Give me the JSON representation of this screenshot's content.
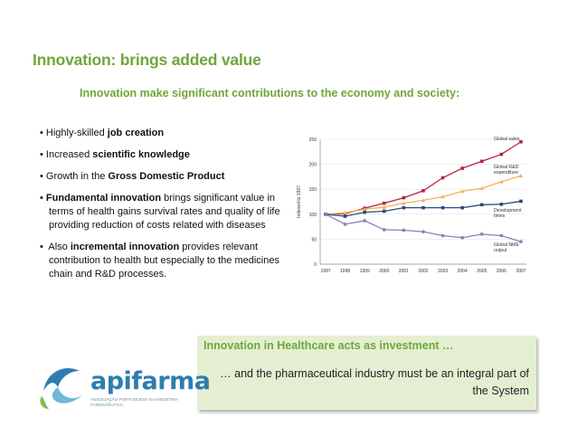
{
  "slide": {
    "title": "Innovation: brings added value",
    "subtitle": "Innovation make significant contributions to the economy and society:"
  },
  "bullets": [
    {
      "pre": "Highly-skilled ",
      "bold": "job creation",
      "post": ""
    },
    {
      "pre": "Increased ",
      "bold": "scientific knowledge",
      "post": ""
    },
    {
      "pre": "Growth in the ",
      "bold": "Gross Domestic Product",
      "post": ""
    },
    {
      "pre": "",
      "bold": "Fundamental innovation",
      "post": " brings significant value in terms of health gains survival rates and quality of life providing reduction of costs related with diseases"
    },
    {
      "pre": " Also ",
      "bold": "incremental innovation",
      "post": " provides relevant contribution to health but especially to the medicines chain and R&D processes."
    }
  ],
  "callout": {
    "heading": "Innovation in Healthcare acts as investment …",
    "body": "… and the pharmaceutical industry must be an integral part of the System"
  },
  "logo": {
    "name": "apifarma",
    "subtext": "ASSOCIAÇÃO PORTUGUESA DA INDÚSTRIA FARMACÊUTICA"
  },
  "chart_data": {
    "type": "line",
    "ylabel": "Indexed to 1997",
    "ylim": [
      0,
      250
    ],
    "yticks": [
      0,
      50,
      100,
      150,
      200,
      250
    ],
    "categories": [
      "1997",
      "1998",
      "1999",
      "2000",
      "2001",
      "2002",
      "2003",
      "2004",
      "2005",
      "2006",
      "2007"
    ],
    "series": [
      {
        "name": "Global sales",
        "label_lines": [
          "Global sales"
        ],
        "color": "#b5253a",
        "marker": "square",
        "values": [
          100,
          101,
          112,
          122,
          133,
          147,
          173,
          192,
          206,
          220,
          245
        ]
      },
      {
        "name": "Global R&D expenditure",
        "label_lines": [
          "Global R&D",
          "expenditure"
        ],
        "color": "#f2b35a",
        "marker": "triangle",
        "values": [
          100,
          103,
          110,
          114,
          122,
          128,
          135,
          146,
          152,
          165,
          177
        ]
      },
      {
        "name": "Development times",
        "label_lines": [
          "Development",
          "times"
        ],
        "color": "#2b4a7a",
        "marker": "square",
        "values": [
          100,
          96,
          104,
          106,
          113,
          113,
          113,
          113,
          119,
          120,
          126
        ]
      },
      {
        "name": "Global NME output",
        "label_lines": [
          "Global NME",
          "output"
        ],
        "color": "#8a80b8",
        "marker": "circle",
        "values": [
          100,
          80,
          87,
          69,
          68,
          65,
          57,
          53,
          60,
          57,
          45
        ]
      }
    ],
    "colors": {
      "axis": "#8a8a8a",
      "grid": "#e6e6e6",
      "label": "#333333"
    }
  }
}
